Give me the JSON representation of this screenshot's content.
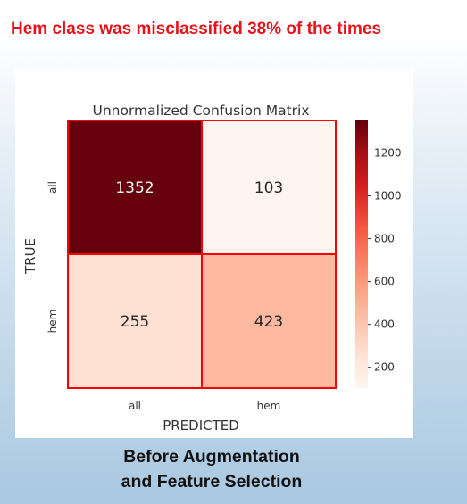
{
  "headline": "Hem class was misclassified 38% of the times",
  "caption": [
    "Before Augmentation",
    "and Feature Selection"
  ],
  "chart_data": {
    "type": "heatmap",
    "title": "Unnormalized Confusion Matrix",
    "xlabel": "PREDICTED",
    "ylabel": "TRUE",
    "x_categories": [
      "all",
      "hem"
    ],
    "y_categories": [
      "all",
      "hem"
    ],
    "values": [
      [
        1352,
        103
      ],
      [
        255,
        423
      ]
    ],
    "colormap": "Reds",
    "colorbar": {
      "range": [
        103,
        1352
      ],
      "ticks": [
        200,
        400,
        600,
        800,
        1000,
        1200
      ]
    },
    "cell_border_color": "#ff0000",
    "headline_color": "#e8131a"
  }
}
